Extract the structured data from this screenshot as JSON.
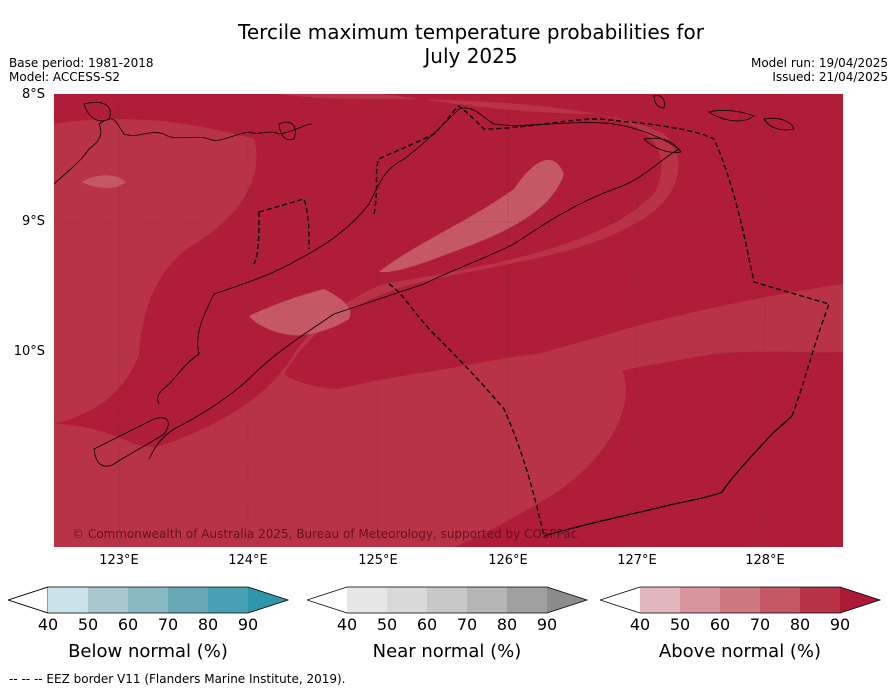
{
  "title_line1": "Tercile maximum temperature probabilities for",
  "title_line2": "July 2025",
  "meta_left": [
    "Base period: 1981-2018",
    "Model: ACCESS-S2"
  ],
  "meta_right": [
    "Model run: 19/04/2025",
    "Issued: 21/04/2025"
  ],
  "lat_labels": [
    "8°S",
    "9°S",
    "10°S"
  ],
  "lon_labels": [
    "123°E",
    "124°E",
    "125°E",
    "126°E",
    "127°E",
    "128°E"
  ],
  "copyright": "© Commonwealth of Australia 2025, Bureau of Meteorology, supported by COSPPac",
  "colorbars": [
    {
      "name": "below",
      "title": "Below normal (%)",
      "ticks": [
        "40",
        "50",
        "60",
        "70",
        "80",
        "90"
      ],
      "colors": [
        "#c9e2e8",
        "#a8c8cd",
        "#89b9c2",
        "#68a8b6",
        "#46a0b2",
        "#2d96ab"
      ]
    },
    {
      "name": "near",
      "title": "Near normal (%)",
      "ticks": [
        "40",
        "50",
        "60",
        "70",
        "80",
        "90"
      ],
      "colors": [
        "#e6e6e6",
        "#d8d8d8",
        "#c8c8c8",
        "#b6b6b6",
        "#a0a0a0",
        "#8c8c8c"
      ]
    },
    {
      "name": "above",
      "title": "Above normal (%)",
      "ticks": [
        "40",
        "50",
        "60",
        "70",
        "80",
        "90"
      ],
      "colors": [
        "#e3b7bf",
        "#d9959e",
        "#cd7880",
        "#c45864",
        "#b93347",
        "#ab1a37"
      ]
    }
  ],
  "footnote": "--  --  -- EEZ border V11 (Flanders Marine Institute, 2019).",
  "map_colors": {
    "base": "#b01d39",
    "band80": "#b93347",
    "band70": "#c45864",
    "border": "#000000"
  }
}
